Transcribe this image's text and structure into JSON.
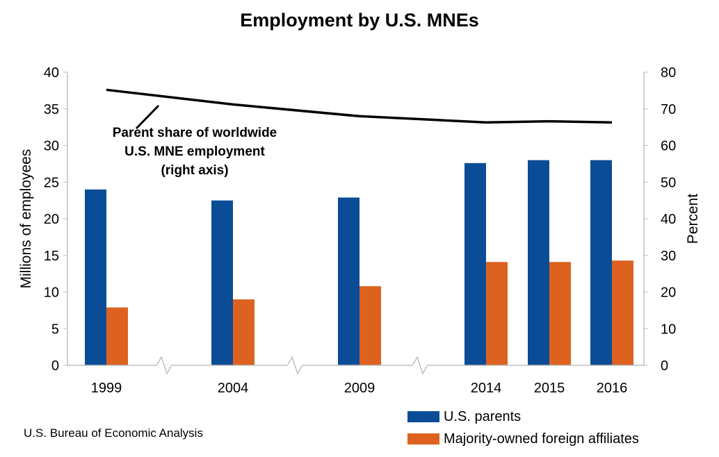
{
  "chart_data": {
    "type": "bar+line",
    "title": "Employment by U.S. MNEs",
    "categories": [
      "1999",
      "2004",
      "2009",
      "2014",
      "2015",
      "2016"
    ],
    "series": [
      {
        "name": "U.S. parents",
        "axis": "left",
        "color": "#0b4c97",
        "values": [
          24.0,
          22.5,
          22.9,
          27.6,
          28.0,
          28.0
        ]
      },
      {
        "name": "Majority-owned foreign affiliates",
        "axis": "left",
        "color": "#dd6220",
        "values": [
          7.9,
          9.0,
          10.8,
          14.1,
          14.1,
          14.3
        ]
      },
      {
        "name": "Parent share of worldwide U.S. MNE employment",
        "axis": "right",
        "type": "line",
        "color": "#000000",
        "values": [
          75.2,
          71.2,
          68.0,
          66.3,
          66.6,
          66.3
        ]
      }
    ],
    "ylabel": "Millions of employees",
    "y2label": "Percent",
    "ylim": [
      0,
      40
    ],
    "y2lim": [
      0,
      80
    ],
    "yticks": [
      "0",
      "5",
      "10",
      "15",
      "20",
      "25",
      "30",
      "35",
      "40"
    ],
    "y2ticks": [
      "0",
      "10",
      "20",
      "30",
      "40",
      "50",
      "60",
      "70",
      "80"
    ],
    "annotation": [
      "Parent share of worldwide",
      "U.S. MNE employment",
      "(right axis)"
    ],
    "legend": [
      "U.S. parents",
      "Majority-owned foreign affiliates"
    ],
    "source": "U.S. Bureau of Economic Analysis"
  }
}
